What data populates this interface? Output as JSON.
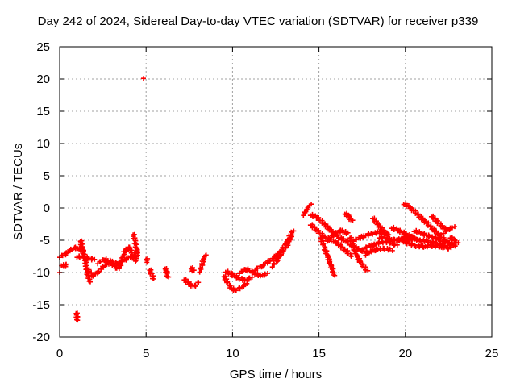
{
  "chart_data": {
    "type": "scatter",
    "title": "Day 242 of 2024, Sidereal Day-to-day VTEC variation (SDTVAR) for receiver p339",
    "xlabel": "GPS time / hours",
    "ylabel": "SDTVAR / TECUs",
    "xlim": [
      0,
      25
    ],
    "ylim": [
      -20,
      25
    ],
    "xticks": [
      0,
      5,
      10,
      15,
      20,
      25
    ],
    "yticks": [
      -20,
      -15,
      -10,
      -5,
      0,
      5,
      10,
      15,
      20,
      25
    ],
    "grid": true,
    "marker": "plus",
    "series_color": "#ff0000",
    "series": [
      {
        "name": "SDTVAR",
        "segments": [
          [
            [
              0.0,
              -7.5
            ],
            [
              0.3,
              -7.2
            ],
            [
              0.6,
              -6.5
            ],
            [
              0.9,
              -6.2
            ],
            [
              1.2,
              -6.3
            ],
            [
              1.4,
              -7.0
            ]
          ],
          [
            [
              0.1,
              -8.8
            ],
            [
              0.3,
              -9.0
            ],
            [
              0.4,
              -8.7
            ]
          ],
          [
            [
              0.0,
              -10.0
            ]
          ],
          [
            [
              0.95,
              -16.2
            ],
            [
              1.0,
              -16.8
            ],
            [
              1.05,
              -17.4
            ]
          ],
          [
            [
              1.2,
              -5.0
            ],
            [
              1.35,
              -6.5
            ],
            [
              1.5,
              -8.5
            ],
            [
              1.6,
              -10.0
            ],
            [
              1.75,
              -11.5
            ]
          ],
          [
            [
              1.0,
              -7.5
            ],
            [
              1.5,
              -7.7
            ],
            [
              2.0,
              -8.0
            ]
          ],
          [
            [
              1.6,
              -9.5
            ],
            [
              1.9,
              -10.5
            ],
            [
              2.2,
              -10.0
            ],
            [
              2.5,
              -9.2
            ],
            [
              2.8,
              -8.5
            ],
            [
              3.1,
              -8.8
            ],
            [
              3.4,
              -9.5
            ]
          ],
          [
            [
              2.2,
              -8.5
            ],
            [
              2.6,
              -8.0
            ],
            [
              3.0,
              -8.3
            ],
            [
              3.5,
              -8.8
            ]
          ],
          [
            [
              3.4,
              -9.0
            ],
            [
              3.6,
              -8.0
            ],
            [
              3.8,
              -6.5
            ],
            [
              4.0,
              -6.2
            ],
            [
              4.2,
              -7.0
            ],
            [
              4.4,
              -8.2
            ]
          ],
          [
            [
              3.5,
              -8.5
            ],
            [
              3.8,
              -8.0
            ],
            [
              4.1,
              -7.5
            ],
            [
              4.4,
              -7.8
            ]
          ],
          [
            [
              4.25,
              -4.0
            ],
            [
              4.35,
              -5.0
            ],
            [
              4.45,
              -6.5
            ],
            [
              4.5,
              -7.5
            ]
          ],
          [
            [
              4.85,
              20.1
            ]
          ],
          [
            [
              5.0,
              -7.8
            ],
            [
              5.1,
              -8.3
            ]
          ],
          [
            [
              5.2,
              -9.5
            ],
            [
              5.35,
              -10.5
            ],
            [
              5.45,
              -11.0
            ]
          ],
          [
            [
              6.1,
              -9.3
            ],
            [
              6.2,
              -10.0
            ],
            [
              6.25,
              -10.8
            ]
          ],
          [
            [
              7.2,
              -11.0
            ],
            [
              7.5,
              -11.8
            ],
            [
              7.8,
              -12.2
            ],
            [
              8.0,
              -11.5
            ]
          ],
          [
            [
              7.6,
              -9.2
            ],
            [
              7.75,
              -9.8
            ]
          ],
          [
            [
              8.1,
              -9.8
            ],
            [
              8.3,
              -8.2
            ],
            [
              8.45,
              -7.2
            ]
          ],
          [
            [
              9.5,
              -10.5
            ],
            [
              9.8,
              -12.0
            ],
            [
              10.1,
              -12.8
            ],
            [
              10.4,
              -12.5
            ],
            [
              10.8,
              -11.8
            ]
          ],
          [
            [
              9.6,
              -9.8
            ],
            [
              9.9,
              -10.2
            ],
            [
              10.3,
              -10.8
            ],
            [
              10.7,
              -11.2
            ],
            [
              11.1,
              -10.8
            ]
          ],
          [
            [
              10.4,
              -10.0
            ],
            [
              10.8,
              -9.5
            ],
            [
              11.2,
              -10.0
            ],
            [
              11.6,
              -10.5
            ],
            [
              12.0,
              -10.2
            ]
          ],
          [
            [
              11.3,
              -9.5
            ],
            [
              11.7,
              -9.0
            ],
            [
              12.1,
              -8.3
            ],
            [
              12.5,
              -7.5
            ],
            [
              12.9,
              -6.5
            ]
          ],
          [
            [
              12.3,
              -9.0
            ],
            [
              12.6,
              -8.0
            ],
            [
              12.9,
              -6.8
            ],
            [
              13.2,
              -5.5
            ],
            [
              13.4,
              -4.5
            ]
          ],
          [
            [
              12.8,
              -6.5
            ],
            [
              13.1,
              -5.5
            ],
            [
              13.5,
              -3.5
            ]
          ],
          [
            [
              14.1,
              -1.0
            ],
            [
              14.3,
              -0.2
            ],
            [
              14.5,
              0.5
            ]
          ],
          [
            [
              14.5,
              -2.5
            ],
            [
              14.9,
              -3.5
            ],
            [
              15.3,
              -4.5
            ],
            [
              15.7,
              -5.0
            ],
            [
              16.1,
              -5.5
            ],
            [
              16.5,
              -6.5
            ],
            [
              16.9,
              -7.5
            ]
          ],
          [
            [
              14.5,
              -1.0
            ],
            [
              14.9,
              -1.5
            ],
            [
              15.3,
              -2.5
            ],
            [
              15.7,
              -3.5
            ],
            [
              16.1,
              -4.5
            ],
            [
              16.5,
              -5.0
            ],
            [
              16.9,
              -5.8
            ],
            [
              17.4,
              -6.5
            ],
            [
              17.9,
              -7.0
            ]
          ],
          [
            [
              15.1,
              -4.5
            ],
            [
              15.3,
              -6.0
            ],
            [
              15.5,
              -7.5
            ],
            [
              15.7,
              -9.0
            ],
            [
              15.9,
              -10.5
            ]
          ],
          [
            [
              15.5,
              -5.0
            ],
            [
              15.9,
              -4.0
            ],
            [
              16.3,
              -3.5
            ],
            [
              16.7,
              -4.0
            ]
          ],
          [
            [
              16.5,
              -0.8
            ],
            [
              16.7,
              -1.3
            ],
            [
              16.9,
              -2.0
            ]
          ],
          [
            [
              16.8,
              -4.5
            ],
            [
              17.0,
              -6.0
            ],
            [
              17.2,
              -7.5
            ],
            [
              17.5,
              -8.8
            ],
            [
              17.8,
              -9.8
            ]
          ],
          [
            [
              17.0,
              -5.0
            ],
            [
              17.5,
              -4.5
            ],
            [
              18.0,
              -4.0
            ],
            [
              18.5,
              -3.8
            ],
            [
              19.0,
              -4.0
            ]
          ],
          [
            [
              17.6,
              -6.2
            ],
            [
              18.1,
              -5.8
            ],
            [
              18.6,
              -5.3
            ],
            [
              19.1,
              -5.3
            ],
            [
              19.5,
              -5.8
            ]
          ],
          [
            [
              17.7,
              -7.2
            ],
            [
              18.2,
              -6.5
            ],
            [
              18.7,
              -6.3
            ],
            [
              19.2,
              -6.5
            ]
          ],
          [
            [
              18.1,
              -1.5
            ],
            [
              18.4,
              -2.5
            ],
            [
              18.7,
              -3.5
            ],
            [
              19.0,
              -4.2
            ]
          ],
          [
            [
              18.5,
              -4.5
            ],
            [
              19.0,
              -4.8
            ],
            [
              19.5,
              -5.0
            ],
            [
              20.0,
              -4.8
            ],
            [
              20.5,
              -4.5
            ]
          ],
          [
            [
              19.2,
              -3.0
            ],
            [
              19.6,
              -3.5
            ],
            [
              20.0,
              -4.0
            ],
            [
              20.4,
              -4.5
            ]
          ],
          [
            [
              19.9,
              0.7
            ],
            [
              20.3,
              0.0
            ],
            [
              20.7,
              -1.0
            ],
            [
              21.1,
              -2.0
            ],
            [
              21.5,
              -3.0
            ],
            [
              21.9,
              -4.0
            ],
            [
              22.3,
              -5.0
            ],
            [
              22.7,
              -5.8
            ]
          ],
          [
            [
              19.5,
              -4.8
            ],
            [
              20.0,
              -5.3
            ],
            [
              20.5,
              -5.8
            ],
            [
              21.0,
              -6.0
            ],
            [
              21.5,
              -5.8
            ],
            [
              22.0,
              -6.0
            ],
            [
              22.5,
              -6.2
            ],
            [
              22.9,
              -5.8
            ]
          ],
          [
            [
              19.8,
              -4.5
            ],
            [
              20.3,
              -4.8
            ],
            [
              20.8,
              -5.0
            ],
            [
              21.3,
              -5.2
            ],
            [
              21.8,
              -5.5
            ],
            [
              22.3,
              -5.8
            ]
          ],
          [
            [
              20.5,
              -3.5
            ],
            [
              21.0,
              -4.0
            ],
            [
              21.5,
              -4.5
            ],
            [
              22.0,
              -5.0
            ],
            [
              22.5,
              -5.5
            ]
          ],
          [
            [
              21.5,
              -1.2
            ],
            [
              21.8,
              -2.0
            ],
            [
              22.1,
              -2.8
            ],
            [
              22.4,
              -3.5
            ]
          ],
          [
            [
              22.2,
              -3.8
            ],
            [
              22.5,
              -3.3
            ],
            [
              22.8,
              -3.0
            ]
          ],
          [
            [
              22.6,
              -4.5
            ],
            [
              22.8,
              -5.0
            ],
            [
              23.0,
              -5.5
            ]
          ]
        ]
      }
    ]
  }
}
